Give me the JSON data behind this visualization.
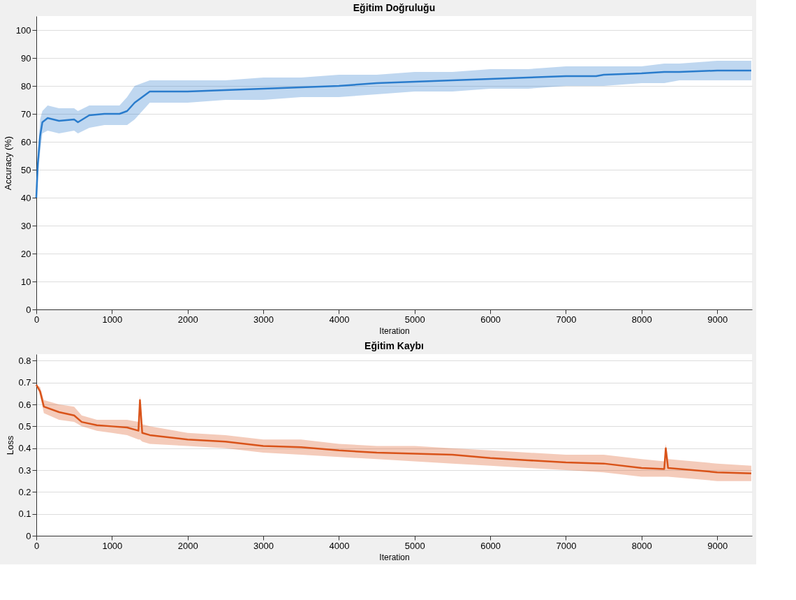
{
  "chart_data": [
    {
      "type": "line",
      "title": "Eğitim Doğruluğu",
      "xlabel": "Iteration",
      "ylabel": "Accuracy (%)",
      "xlim": [
        0,
        9460
      ],
      "xticks": [
        0,
        1000,
        2000,
        3000,
        4000,
        5000,
        6000,
        7000,
        8000,
        9000
      ],
      "ylim": [
        0,
        105
      ],
      "yticks": [
        0,
        10,
        20,
        30,
        40,
        50,
        60,
        70,
        80,
        90,
        100
      ],
      "grid": "y",
      "line_style": "solid",
      "x": [
        0,
        20,
        50,
        80,
        150,
        300,
        500,
        550,
        700,
        900,
        1100,
        1200,
        1300,
        1400,
        1500,
        1700,
        2000,
        2500,
        3000,
        3500,
        4000,
        4500,
        5000,
        5500,
        6000,
        6500,
        7000,
        7400,
        7500,
        8000,
        8300,
        8500,
        9000,
        9450
      ],
      "series": [
        {
          "color": "#2a7ccc",
          "values": [
            40,
            52,
            62,
            67,
            68.5,
            67.5,
            68,
            67,
            69.5,
            70,
            70,
            71,
            74,
            76,
            78,
            78,
            78,
            78.5,
            79,
            79.5,
            80,
            81,
            81.5,
            82,
            82.5,
            83,
            83.5,
            83.5,
            84,
            84.5,
            85,
            85,
            85.5,
            85.5
          ],
          "lower": [
            40,
            48,
            56,
            63,
            64,
            63,
            64,
            63,
            65,
            66,
            66,
            66,
            68,
            71,
            74,
            74,
            74,
            75,
            75,
            76,
            76,
            77,
            78,
            78,
            79,
            79,
            80,
            80,
            80,
            81,
            81,
            82,
            82,
            82
          ],
          "upper": [
            40,
            56,
            68,
            71,
            73,
            72,
            72,
            71,
            73,
            73,
            73,
            76,
            80,
            81,
            82,
            82,
            82,
            82,
            83,
            83,
            84,
            84,
            85,
            85,
            86,
            86,
            87,
            87,
            87,
            87,
            88,
            88,
            89,
            89
          ]
        }
      ]
    },
    {
      "type": "line",
      "title": "Eğitim Kaybı",
      "xlabel": "Iteration",
      "ylabel": "Loss",
      "xlim": [
        0,
        9460
      ],
      "xticks": [
        0,
        1000,
        2000,
        3000,
        4000,
        5000,
        6000,
        7000,
        8000,
        9000
      ],
      "ylim": [
        0,
        0.83
      ],
      "yticks": [
        0,
        0.1,
        0.2,
        0.3,
        0.4,
        0.5,
        0.6,
        0.7,
        0.8
      ],
      "grid": "y",
      "line_style": "solid",
      "x": [
        0,
        50,
        100,
        300,
        500,
        600,
        800,
        1000,
        1200,
        1350,
        1370,
        1400,
        1500,
        2000,
        2500,
        3000,
        3500,
        4000,
        4500,
        5000,
        5500,
        6000,
        6500,
        7000,
        7500,
        8000,
        8300,
        8320,
        8350,
        9000,
        9450
      ],
      "series": [
        {
          "color": "#d95319",
          "values": [
            0.69,
            0.66,
            0.59,
            0.565,
            0.55,
            0.52,
            0.505,
            0.5,
            0.495,
            0.48,
            0.62,
            0.47,
            0.46,
            0.44,
            0.43,
            0.41,
            0.405,
            0.39,
            0.38,
            0.375,
            0.37,
            0.355,
            0.345,
            0.335,
            0.33,
            0.31,
            0.305,
            0.4,
            0.31,
            0.29,
            0.285
          ],
          "lower": [
            0.69,
            0.64,
            0.56,
            0.53,
            0.52,
            0.5,
            0.48,
            0.47,
            0.46,
            0.44,
            0.44,
            0.43,
            0.42,
            0.41,
            0.4,
            0.38,
            0.37,
            0.36,
            0.35,
            0.34,
            0.33,
            0.32,
            0.31,
            0.3,
            0.29,
            0.27,
            0.27,
            0.27,
            0.27,
            0.25,
            0.25
          ],
          "upper": [
            0.69,
            0.68,
            0.62,
            0.6,
            0.59,
            0.55,
            0.53,
            0.53,
            0.53,
            0.52,
            0.64,
            0.51,
            0.5,
            0.47,
            0.46,
            0.44,
            0.44,
            0.42,
            0.41,
            0.41,
            0.4,
            0.39,
            0.38,
            0.37,
            0.37,
            0.35,
            0.34,
            0.42,
            0.35,
            0.33,
            0.32
          ]
        }
      ]
    }
  ]
}
